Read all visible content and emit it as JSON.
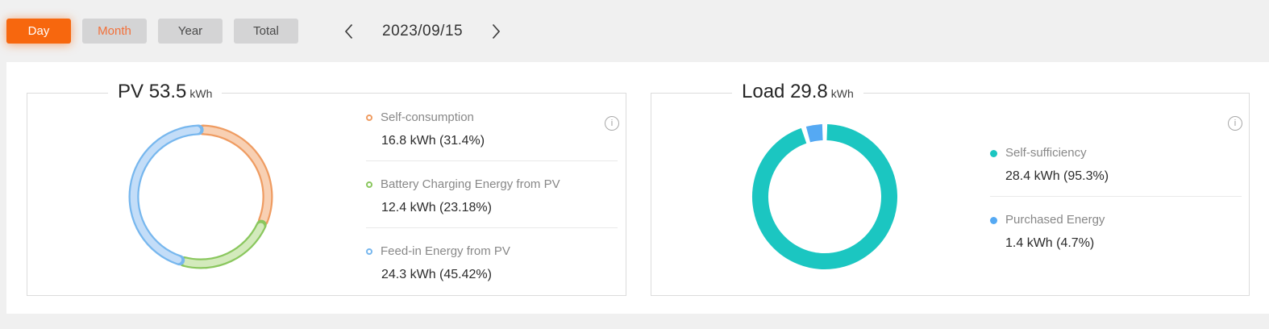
{
  "toolbar": {
    "tabs": [
      {
        "label": "Day",
        "active": true
      },
      {
        "label": "Month",
        "highlighted": true
      },
      {
        "label": "Year"
      },
      {
        "label": "Total"
      }
    ],
    "date": "2023/09/15",
    "icons": {
      "prev": "chevron-left-icon",
      "next": "chevron-right-icon"
    }
  },
  "icons": {
    "info_glyph": "i"
  },
  "colors": {
    "page_bg": "#f0f0f0",
    "panel_bg": "#ffffff",
    "accent_orange": "#f7670e",
    "tab_gray_bg": "#d4d4d5",
    "card_border": "#dcdcdc",
    "teal": "#1bc6c1",
    "blue": "#55a9f3"
  },
  "chart_data": [
    {
      "type": "pie",
      "variant": "donut",
      "title": "PV",
      "total": "53.5",
      "unit": "kWh",
      "legend_position": "right",
      "ring_style": "outlined",
      "radius": 83,
      "stroke_width": 13,
      "gap_deg": 4,
      "segments": [
        {
          "label": "Self-consumption",
          "value_kwh": 16.8,
          "percent": 31.4,
          "edge": "#ef9c62",
          "fill": "#f8d0b3"
        },
        {
          "label": "Battery Charging Energy from PV",
          "value_kwh": 12.4,
          "percent": 23.18,
          "edge": "#8ac75e",
          "fill": "#d3eabc"
        },
        {
          "label": "Feed-in Energy from PV",
          "value_kwh": 24.3,
          "percent": 45.42,
          "edge": "#77b7ee",
          "fill": "#c3ddf8"
        }
      ],
      "legend": [
        {
          "label": "Self-consumption",
          "value": "16.8 kWh (31.4%)"
        },
        {
          "label": "Battery Charging Energy from PV",
          "value": "12.4 kWh (23.18%)"
        },
        {
          "label": "Feed-in Energy from PV",
          "value": "24.3 kWh (45.42%)"
        }
      ]
    },
    {
      "type": "pie",
      "variant": "donut",
      "title": "Load",
      "total": "29.8",
      "unit": "kWh",
      "legend_position": "right",
      "ring_style": "solid",
      "radius": 80,
      "stroke_width": 20,
      "gap_deg": 4,
      "segments": [
        {
          "label": "Self-sufficiency",
          "value_kwh": 28.4,
          "percent": 95.3,
          "color": "#1bc6c1"
        },
        {
          "label": "Purchased Energy",
          "value_kwh": 1.4,
          "percent": 4.7,
          "color": "#55a9f3"
        }
      ],
      "legend": [
        {
          "label": "Self-sufficiency",
          "value": "28.4 kWh (95.3%)"
        },
        {
          "label": "Purchased Energy",
          "value": "1.4 kWh (4.7%)"
        }
      ]
    }
  ]
}
